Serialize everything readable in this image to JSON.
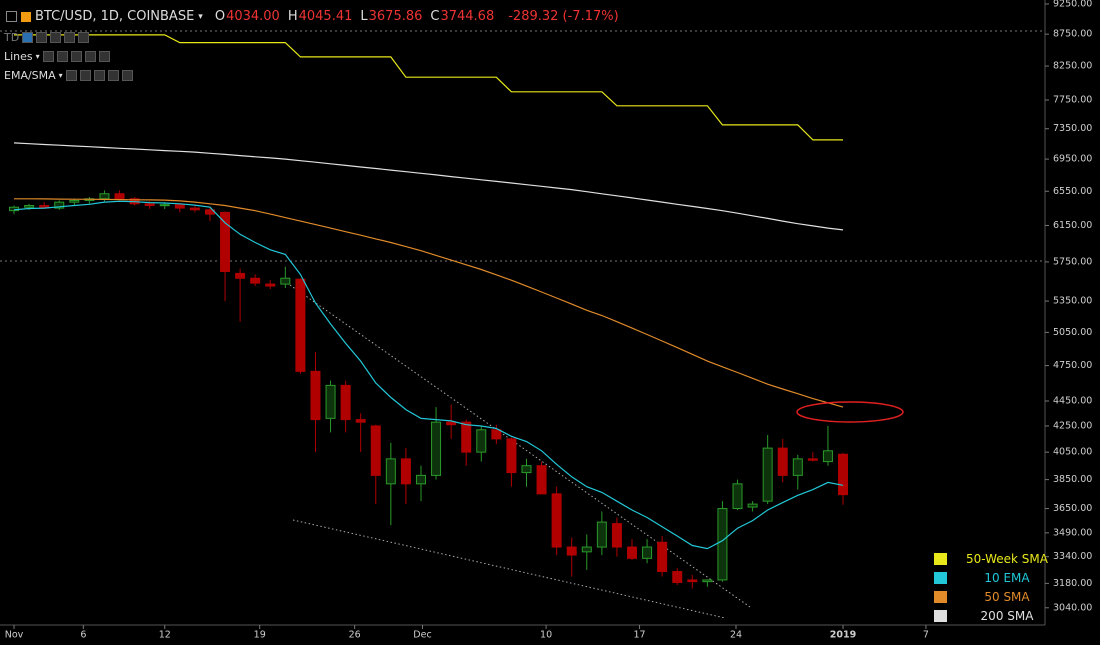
{
  "header": {
    "symbol": "BTC/USD, 1D, COINBASE",
    "ohlc": [
      {
        "key": "O",
        "value": "4034.00"
      },
      {
        "key": "H",
        "value": "4045.41"
      },
      {
        "key": "L",
        "value": "3675.86"
      },
      {
        "key": "C",
        "value": "3744.68"
      }
    ],
    "change": "-289.32 (-7.17%)",
    "indicators": [
      "TD",
      "Lines",
      "EMA/SMA"
    ]
  },
  "chart_data": {
    "type": "candlestick",
    "log_scale": true,
    "up_color": "#2a9a2a",
    "down_color": "#b00000",
    "xlim": [
      -0.93,
      68.4
    ],
    "xticks": [
      {
        "value": 0,
        "label": "Nov"
      },
      {
        "value": 4.6,
        "label": "6"
      },
      {
        "value": 10,
        "label": "12"
      },
      {
        "value": 16.3,
        "label": "19"
      },
      {
        "value": 22.6,
        "label": "26"
      },
      {
        "value": 27.1,
        "label": "Dec"
      },
      {
        "value": 35.3,
        "label": "10"
      },
      {
        "value": 41.5,
        "label": "17"
      },
      {
        "value": 47.9,
        "label": "24"
      },
      {
        "value": 55,
        "label": "2019"
      },
      {
        "value": 60.5,
        "label": "7"
      }
    ],
    "ylim": [
      2945,
      9318
    ],
    "yticks": [
      {
        "value": 9250,
        "label": "9250.00"
      },
      {
        "value": 8750,
        "label": "8750.00"
      },
      {
        "value": 8250,
        "label": "8250.00"
      },
      {
        "value": 7750,
        "label": "7750.00"
      },
      {
        "value": 7350,
        "label": "7350.00"
      },
      {
        "value": 6950,
        "label": "6950.00"
      },
      {
        "value": 6550,
        "label": "6550.00"
      },
      {
        "value": 6150,
        "label": "6150.00"
      },
      {
        "value": 5750,
        "label": "5750.00"
      },
      {
        "value": 5350,
        "label": "5350.00"
      },
      {
        "value": 5050,
        "label": "5050.00"
      },
      {
        "value": 4750,
        "label": "4750.00"
      },
      {
        "value": 4450,
        "label": "4450.00"
      },
      {
        "value": 4250,
        "label": "4250.00"
      },
      {
        "value": 4050,
        "label": "4050.00"
      },
      {
        "value": 3850,
        "label": "3850.00"
      },
      {
        "value": 3650,
        "label": "3650.00"
      },
      {
        "value": 3490,
        "label": "3490.00"
      },
      {
        "value": 3340,
        "label": "3340.00"
      },
      {
        "value": 3180,
        "label": "3180.00"
      },
      {
        "value": 3040,
        "label": "3040.00"
      }
    ],
    "x": [
      0,
      1,
      2,
      3,
      4,
      5,
      6,
      7,
      8,
      9,
      10,
      11,
      12,
      13,
      14,
      15,
      16,
      17,
      18,
      19,
      20,
      21,
      22,
      23,
      24,
      25,
      26,
      27,
      28,
      29,
      30,
      31,
      32,
      33,
      34,
      35,
      36,
      37,
      38,
      39,
      40,
      41,
      42,
      43,
      44,
      45,
      46,
      47,
      48,
      49,
      50,
      51,
      52,
      53,
      54,
      55
    ],
    "open": [
      6320,
      6360,
      6380,
      6350,
      6420,
      6440,
      6460,
      6520,
      6460,
      6400,
      6380,
      6390,
      6350,
      6330,
      6300,
      5630,
      5580,
      5520,
      5520,
      5570,
      4700,
      4310,
      4580,
      4300,
      4250,
      3820,
      4000,
      3820,
      3880,
      4280,
      4280,
      4050,
      4220,
      4150,
      3900,
      3950,
      3750,
      3400,
      3370,
      3400,
      3550,
      3400,
      3330,
      3430,
      3250,
      3200,
      3190,
      3200,
      3650,
      3660,
      3700,
      4080,
      3880,
      4000,
      3980,
      4034
    ],
    "high": [
      6380,
      6400,
      6420,
      6440,
      6460,
      6480,
      6560,
      6560,
      6480,
      6430,
      6420,
      6410,
      6380,
      6360,
      6310,
      5680,
      5620,
      5560,
      5700,
      5580,
      4870,
      4620,
      4620,
      4350,
      4260,
      4120,
      4080,
      3950,
      4400,
      4420,
      4300,
      4250,
      4260,
      4160,
      4000,
      3980,
      3800,
      3460,
      3480,
      3630,
      3590,
      3450,
      3450,
      3470,
      3270,
      3230,
      3200,
      3700,
      3850,
      3700,
      4180,
      4150,
      4030,
      4050,
      4250,
      4045.41
    ],
    "low": [
      6280,
      6330,
      6340,
      6330,
      6380,
      6400,
      6430,
      6440,
      6380,
      6340,
      6340,
      6300,
      6300,
      6200,
      5350,
      5150,
      5500,
      5470,
      5480,
      4680,
      4050,
      4200,
      4200,
      4050,
      3680,
      3540,
      3680,
      3700,
      3850,
      4150,
      3950,
      3980,
      4110,
      3800,
      3800,
      3750,
      3350,
      3220,
      3260,
      3350,
      3340,
      3320,
      3300,
      3220,
      3170,
      3150,
      3160,
      3190,
      3640,
      3630,
      3680,
      3830,
      3780,
      3980,
      3950,
      3675.86
    ],
    "close": [
      6360,
      6380,
      6350,
      6420,
      6440,
      6460,
      6520,
      6460,
      6400,
      6380,
      6390,
      6350,
      6330,
      6280,
      5650,
      5580,
      5530,
      5500,
      5580,
      4700,
      4300,
      4580,
      4300,
      4280,
      3880,
      4000,
      3820,
      3880,
      4280,
      4260,
      4050,
      4220,
      4150,
      3900,
      3950,
      3750,
      3400,
      3350,
      3400,
      3560,
      3400,
      3330,
      3400,
      3250,
      3185,
      3190,
      3200,
      3650,
      3820,
      3680,
      4080,
      3880,
      4000,
      3990,
      4060,
      3744.68
    ],
    "series": [
      {
        "name": "50-Week SMA",
        "color": "#e8e81a",
        "values": [
          8737,
          8737,
          8737,
          8737,
          8737,
          8737,
          8737,
          8737,
          8737,
          8737,
          8737,
          8615,
          8615,
          8615,
          8615,
          8615,
          8615,
          8615,
          8615,
          8390,
          8390,
          8390,
          8390,
          8390,
          8390,
          8390,
          8083,
          8083,
          8083,
          8083,
          8083,
          8083,
          8083,
          7867,
          7867,
          7867,
          7867,
          7867,
          7867,
          7867,
          7668,
          7668,
          7668,
          7668,
          7668,
          7668,
          7668,
          7402,
          7402,
          7402,
          7402,
          7402,
          7402,
          7200,
          7200,
          7200
        ]
      },
      {
        "name": "10 EMA",
        "color": "#22c8d8",
        "values": [
          6330,
          6345,
          6350,
          6365,
          6380,
          6395,
          6420,
          6430,
          6425,
          6415,
          6410,
          6400,
          6385,
          6360,
          6180,
          6050,
          5960,
          5880,
          5830,
          5620,
          5330,
          5130,
          4950,
          4790,
          4600,
          4480,
          4380,
          4310,
          4300,
          4290,
          4260,
          4250,
          4230,
          4170,
          4130,
          4060,
          3960,
          3870,
          3800,
          3760,
          3700,
          3640,
          3590,
          3530,
          3470,
          3410,
          3390,
          3440,
          3520,
          3570,
          3640,
          3690,
          3740,
          3780,
          3830,
          3810
        ]
      },
      {
        "name": "50 SMA",
        "color": "#e08a2a",
        "values": [
          6460,
          6460,
          6458,
          6456,
          6455,
          6454,
          6452,
          6450,
          6448,
          6446,
          6444,
          6435,
          6420,
          6400,
          6380,
          6350,
          6320,
          6280,
          6240,
          6200,
          6160,
          6120,
          6080,
          6040,
          6000,
          5960,
          5915,
          5870,
          5820,
          5770,
          5720,
          5670,
          5615,
          5560,
          5500,
          5440,
          5380,
          5320,
          5260,
          5210,
          5150,
          5090,
          5030,
          4970,
          4910,
          4850,
          4790,
          4740,
          4690,
          4640,
          4590,
          4550,
          4510,
          4470,
          4435,
          4400
        ]
      },
      {
        "name": "200 SMA",
        "color": "#e0e0e0",
        "values": [
          7160,
          7150,
          7140,
          7130,
          7120,
          7110,
          7100,
          7090,
          7080,
          7070,
          7060,
          7050,
          7040,
          7025,
          7010,
          6995,
          6980,
          6965,
          6950,
          6930,
          6910,
          6890,
          6870,
          6850,
          6830,
          6810,
          6790,
          6770,
          6750,
          6730,
          6710,
          6690,
          6670,
          6650,
          6630,
          6610,
          6590,
          6570,
          6545,
          6520,
          6495,
          6470,
          6445,
          6420,
          6395,
          6370,
          6345,
          6320,
          6290,
          6260,
          6230,
          6200,
          6170,
          6145,
          6120,
          6100
        ]
      }
    ]
  }
}
